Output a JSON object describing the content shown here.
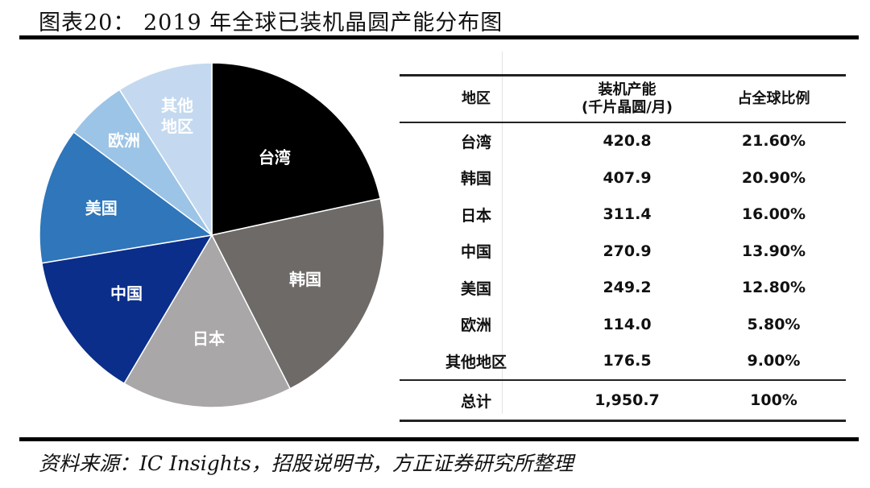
{
  "title": "图表20： 2019 年全球已装机晶圆产能分布图",
  "source": "资料来源：IC Insights，招股说明书，方正证券研究所整理",
  "table": {
    "headers": [
      "地区",
      "装机产能",
      "(千片晶圆/月)",
      "占全球比例"
    ],
    "rows": [
      [
        "台湾",
        "420.8",
        "21.60%"
      ],
      [
        "韩国",
        "407.9",
        "20.90%"
      ],
      [
        "日本",
        "311.4",
        "16.00%"
      ],
      [
        "中国",
        "270.9",
        "13.90%"
      ],
      [
        "美国",
        "249.2",
        "12.80%"
      ],
      [
        "欧洲",
        "114.0",
        "5.80%"
      ],
      [
        "其他地区",
        "176.5",
        "9.00%"
      ]
    ],
    "total": [
      "总计",
      "1,950.7",
      "100%"
    ]
  },
  "chart_data": {
    "type": "pie",
    "title": "2019 年全球已装机晶圆产能分布图",
    "categories": [
      "台湾",
      "韩国",
      "日本",
      "中国",
      "美国",
      "欧洲",
      "其他地区"
    ],
    "values": [
      21.6,
      20.9,
      16.0,
      13.9,
      12.8,
      5.8,
      9.0
    ],
    "colors": [
      "#000000",
      "#6e6a68",
      "#a9a7a8",
      "#0b2e8a",
      "#2f76bb",
      "#9cc4e6",
      "#c4d9ef"
    ],
    "label_colors": [
      "#ffffff",
      "#ffffff",
      "#ffffff",
      "#ffffff",
      "#ffffff",
      "#ffffff",
      "#ffffff"
    ],
    "start_angle": "12 o'clock",
    "direction": "clockwise"
  }
}
